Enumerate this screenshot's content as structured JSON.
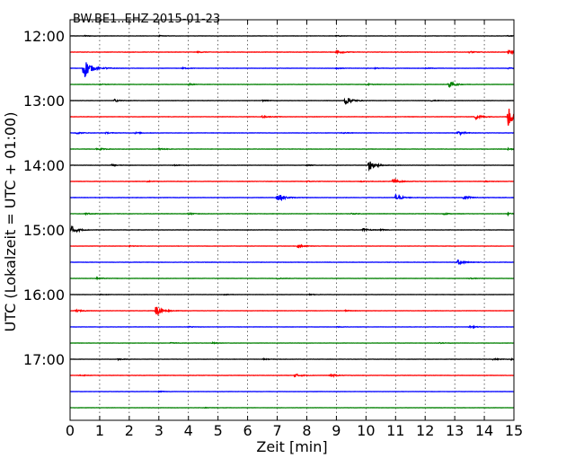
{
  "chart_data": {
    "type": "line",
    "title": "BW.BE1..EHZ 2015-01-23",
    "xlabel": "Zeit  [min]",
    "ylabel": "UTC (Lokalzeit = UTC + 01:00)",
    "xlim": [
      0,
      15
    ],
    "x_ticks": [
      "0",
      "1",
      "2",
      "3",
      "4",
      "5",
      "6",
      "7",
      "8",
      "9",
      "10",
      "11",
      "12",
      "13",
      "14",
      "15"
    ],
    "y_ticks": [
      "12:00",
      "13:00",
      "14:00",
      "15:00",
      "16:00",
      "17:00"
    ],
    "grid": "vertical dotted",
    "trace_colors": [
      "#000000",
      "#ff0000",
      "#0000ff",
      "#008000"
    ],
    "traces": [
      {
        "label": "12:00",
        "events": [
          [
            0.5,
            0.5
          ],
          [
            3.0,
            0.5
          ],
          [
            9.0,
            0.5
          ],
          [
            14.8,
            0.5
          ]
        ],
        "noise": 0.12
      },
      {
        "label": "12:15",
        "events": [
          [
            4.3,
            0.6
          ],
          [
            9.0,
            2.2
          ],
          [
            13.5,
            0.8
          ],
          [
            14.8,
            2.2
          ]
        ],
        "noise": 0.18
      },
      {
        "label": "12:30",
        "events": [
          [
            0.45,
            14.0
          ],
          [
            1.2,
            0.6
          ],
          [
            3.8,
            0.8
          ],
          [
            9.0,
            0.6
          ],
          [
            10.3,
            0.5
          ],
          [
            12.0,
            0.6
          ],
          [
            14.8,
            0.6
          ]
        ],
        "noise": 0.12
      },
      {
        "label": "12:45",
        "events": [
          [
            1.0,
            0.6
          ],
          [
            4.0,
            1.0
          ],
          [
            10.0,
            0.8
          ],
          [
            12.8,
            3.5
          ]
        ],
        "noise": 0.12
      },
      {
        "label": "13:00",
        "events": [
          [
            1.5,
            1.2
          ],
          [
            6.5,
            0.6
          ],
          [
            9.3,
            5.0
          ],
          [
            12.2,
            0.6
          ]
        ],
        "noise": 0.12
      },
      {
        "label": "13:15",
        "events": [
          [
            6.5,
            1.1
          ],
          [
            13.7,
            3.0
          ],
          [
            14.8,
            11.0
          ]
        ],
        "noise": 0.15
      },
      {
        "label": "13:30",
        "events": [
          [
            0.2,
            1.0
          ],
          [
            1.2,
            0.6
          ],
          [
            2.2,
            0.8
          ],
          [
            9.2,
            0.6
          ],
          [
            13.1,
            2.2
          ]
        ],
        "noise": 0.15
      },
      {
        "label": "13:45",
        "events": [
          [
            0.9,
            1.5
          ],
          [
            3.0,
            0.8
          ],
          [
            14.8,
            0.8
          ]
        ],
        "noise": 0.15
      },
      {
        "label": "14:00",
        "events": [
          [
            1.4,
            0.8
          ],
          [
            3.5,
            0.6
          ],
          [
            8.0,
            0.6
          ],
          [
            10.1,
            6.0
          ]
        ],
        "noise": 0.12
      },
      {
        "label": "14:15",
        "events": [
          [
            2.6,
            0.6
          ],
          [
            8.0,
            0.6
          ],
          [
            9.8,
            0.6
          ],
          [
            10.9,
            2.8
          ],
          [
            14.0,
            0.6
          ]
        ],
        "noise": 0.15
      },
      {
        "label": "14:30",
        "events": [
          [
            7.0,
            5.5
          ],
          [
            11.0,
            3.6
          ],
          [
            13.3,
            2.8
          ]
        ],
        "noise": 0.15
      },
      {
        "label": "14:45",
        "events": [
          [
            0.5,
            0.8
          ],
          [
            4.0,
            0.8
          ],
          [
            9.5,
            0.6
          ],
          [
            12.6,
            0.8
          ],
          [
            14.8,
            1.0
          ]
        ],
        "noise": 0.15
      },
      {
        "label": "15:00",
        "events": [
          [
            0.05,
            5.0
          ],
          [
            9.9,
            1.5
          ],
          [
            10.5,
            0.6
          ]
        ],
        "noise": 0.12
      },
      {
        "label": "15:15",
        "events": [
          [
            2.0,
            0.6
          ],
          [
            7.7,
            2.0
          ]
        ],
        "noise": 0.12
      },
      {
        "label": "15:30",
        "events": [
          [
            13.1,
            2.6
          ]
        ],
        "noise": 0.15
      },
      {
        "label": "15:45",
        "events": [
          [
            0.9,
            0.8
          ],
          [
            7.0,
            0.6
          ],
          [
            13.5,
            0.6
          ]
        ],
        "noise": 0.12
      },
      {
        "label": "16:00",
        "events": [
          [
            1.0,
            0.6
          ],
          [
            5.2,
            0.6
          ],
          [
            8.1,
            0.6
          ]
        ],
        "noise": 0.1
      },
      {
        "label": "16:15",
        "events": [
          [
            0.2,
            1.2
          ],
          [
            2.9,
            6.0
          ],
          [
            9.3,
            0.6
          ]
        ],
        "noise": 0.12
      },
      {
        "label": "16:30",
        "events": [
          [
            4.0,
            0.6
          ],
          [
            9.0,
            0.6
          ],
          [
            13.5,
            1.2
          ]
        ],
        "noise": 0.1
      },
      {
        "label": "16:45",
        "events": [
          [
            3.4,
            0.6
          ],
          [
            4.8,
            0.6
          ],
          [
            12.5,
            0.6
          ]
        ],
        "noise": 0.1
      },
      {
        "label": "17:00",
        "events": [
          [
            1.6,
            0.8
          ],
          [
            6.5,
            0.8
          ],
          [
            14.3,
            0.8
          ],
          [
            14.9,
            0.8
          ]
        ],
        "noise": 0.12
      },
      {
        "label": "17:15",
        "events": [
          [
            0.3,
            0.8
          ],
          [
            7.6,
            1.8
          ],
          [
            8.8,
            1.6
          ]
        ],
        "noise": 0.15
      },
      {
        "label": "17:30",
        "events": [
          [
            3.0,
            0.5
          ]
        ],
        "noise": 0.1
      },
      {
        "label": "17:45",
        "events": [
          [
            4.5,
            0.5
          ]
        ],
        "noise": 0.1
      }
    ]
  }
}
